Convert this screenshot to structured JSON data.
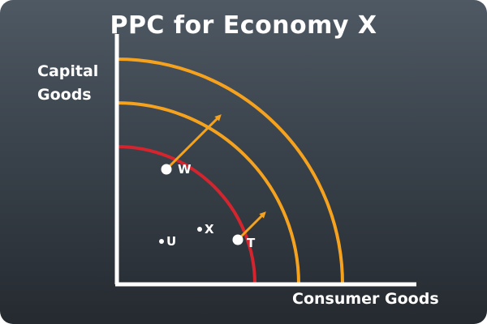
{
  "title": "PPC for Economy X",
  "y_axis": {
    "line1": "Capital",
    "line2": "Goods"
  },
  "x_axis": {
    "label": "Consumer Goods"
  },
  "colors": {
    "original_curve": "#d4252f",
    "shifted_curves": "#f5a21e",
    "arrows": "#f5a21e",
    "axes": "#ffffff",
    "points": "#ffffff"
  },
  "points": [
    {
      "label": "W",
      "on_curve": true
    },
    {
      "label": "T",
      "on_curve": true
    },
    {
      "label": "X",
      "on_curve": false
    },
    {
      "label": "U",
      "on_curve": false
    }
  ]
}
